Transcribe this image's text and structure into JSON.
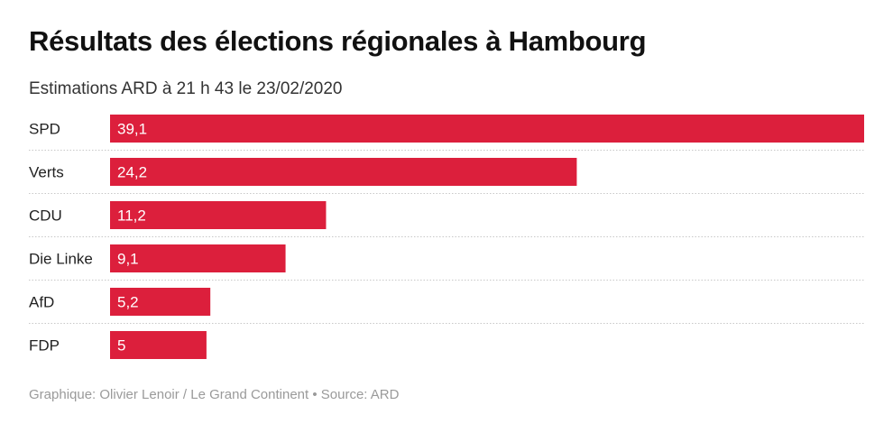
{
  "chart_data": {
    "type": "bar",
    "orientation": "horizontal",
    "title": "Résultats des élections régionales à Hambourg",
    "subtitle": "Estimations ARD à 21 h 43 le 23/02/2020",
    "categories": [
      "SPD",
      "Verts",
      "CDU",
      "Die Linke",
      "AfD",
      "FDP"
    ],
    "values": [
      39.1,
      24.2,
      11.2,
      9.1,
      5.2,
      5
    ],
    "value_labels": [
      "39,1",
      "24,2",
      "11,2",
      "9,1",
      "5,2",
      "5"
    ],
    "xlabel": "",
    "ylabel": "",
    "xlim": [
      0,
      39.1
    ],
    "grid": false,
    "bar_color": "#dc1f3c",
    "footer": "Graphique: Olivier Lenoir / Le Grand Continent • Source: ARD"
  }
}
